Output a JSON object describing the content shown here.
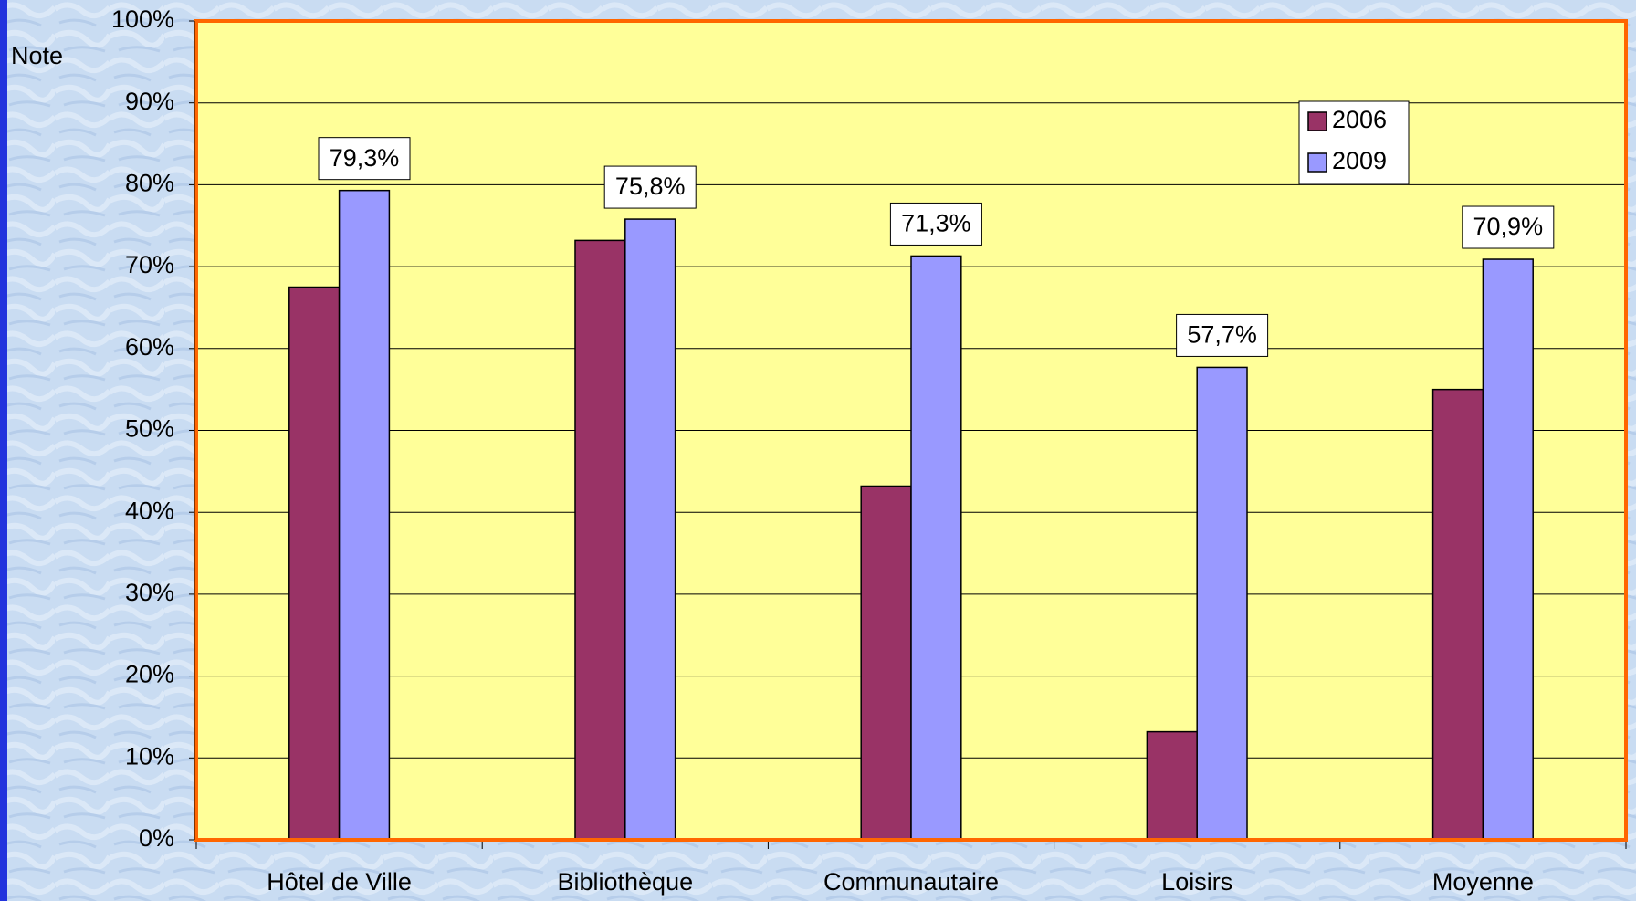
{
  "chart_data": {
    "type": "bar",
    "ylabel": "Note",
    "categories": [
      "Hôtel de Ville",
      "Bibliothèque",
      "Communautaire",
      "Loisirs",
      "Moyenne"
    ],
    "series": [
      {
        "name": "2006",
        "color": "#993366",
        "values": [
          67.5,
          73.2,
          43.2,
          13.2,
          55.0
        ]
      },
      {
        "name": "2009",
        "color": "#9999ff",
        "values": [
          79.3,
          75.8,
          71.3,
          57.7,
          70.9
        ],
        "value_labels": [
          "79,3%",
          "75,8%",
          "71,3%",
          "57,7%",
          "70,9%"
        ]
      }
    ],
    "ylim": [
      0,
      100
    ],
    "yticks": [
      {
        "value": 0,
        "label": "0%"
      },
      {
        "value": 10,
        "label": "10%"
      },
      {
        "value": 20,
        "label": "20%"
      },
      {
        "value": 30,
        "label": "30%"
      },
      {
        "value": 40,
        "label": "40%"
      },
      {
        "value": 50,
        "label": "50%"
      },
      {
        "value": 60,
        "label": "60%"
      },
      {
        "value": 70,
        "label": "70%"
      },
      {
        "value": 80,
        "label": "80%"
      },
      {
        "value": 90,
        "label": "90%"
      },
      {
        "value": 100,
        "label": "100%"
      }
    ],
    "grid": true,
    "legend": "top-right"
  }
}
